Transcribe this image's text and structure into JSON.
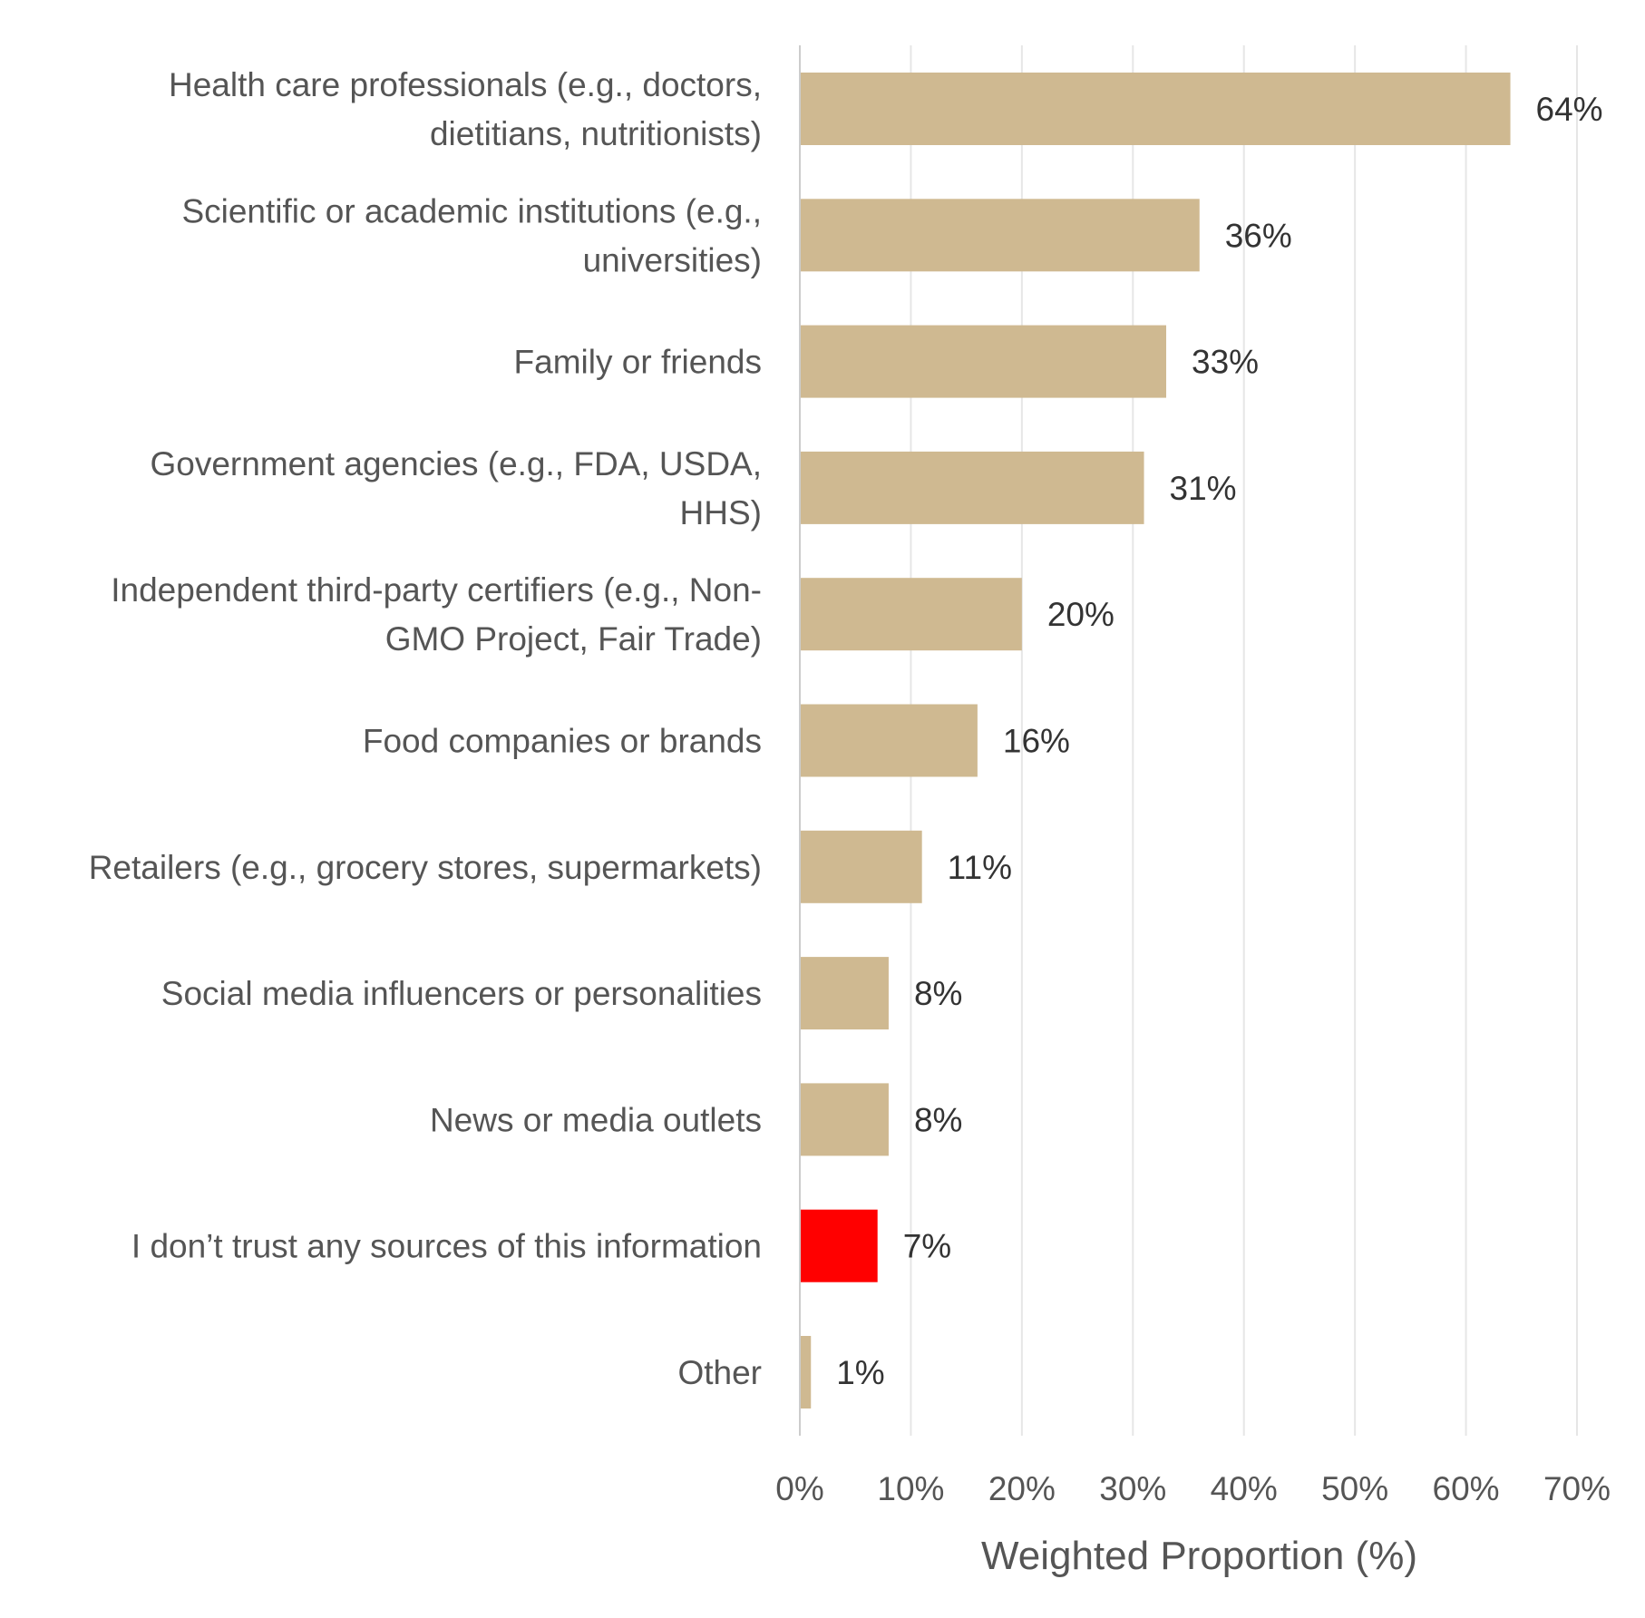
{
  "chart_data": {
    "type": "bar",
    "orientation": "horizontal",
    "categories": [
      [
        "Health care professionals (e.g., doctors,",
        "dietitians, nutritionists)"
      ],
      [
        "Scientific or academic institutions (e.g.,",
        "universities)"
      ],
      [
        "Family or friends"
      ],
      [
        "Government agencies (e.g., FDA, USDA,",
        "HHS)"
      ],
      [
        "Independent third-party certifiers (e.g., Non-",
        "GMO Project, Fair Trade)"
      ],
      [
        "Food companies or brands"
      ],
      [
        "Retailers (e.g., grocery stores, supermarkets)"
      ],
      [
        "Social media influencers or personalities"
      ],
      [
        "News or media outlets"
      ],
      [
        "I don’t trust any sources of this information"
      ],
      [
        "Other"
      ]
    ],
    "values": [
      64,
      36,
      33,
      31,
      20,
      16,
      11,
      8,
      8,
      7,
      1
    ],
    "value_labels": [
      "64%",
      "36%",
      "33%",
      "31%",
      "20%",
      "16%",
      "11%",
      "8%",
      "8%",
      "7%",
      "1%"
    ],
    "highlight_index": 9,
    "xlabel": "Weighted Proportion (%)",
    "xlim": [
      0,
      70
    ],
    "xticks": [
      0,
      10,
      20,
      30,
      40,
      50,
      60,
      70
    ],
    "xtick_labels": [
      "0%",
      "10%",
      "20%",
      "30%",
      "40%",
      "50%",
      "60%",
      "70%"
    ],
    "grid": "vertical",
    "legend": "none",
    "colors": {
      "bar": "#cfb991",
      "highlight": "#ff0000"
    }
  }
}
